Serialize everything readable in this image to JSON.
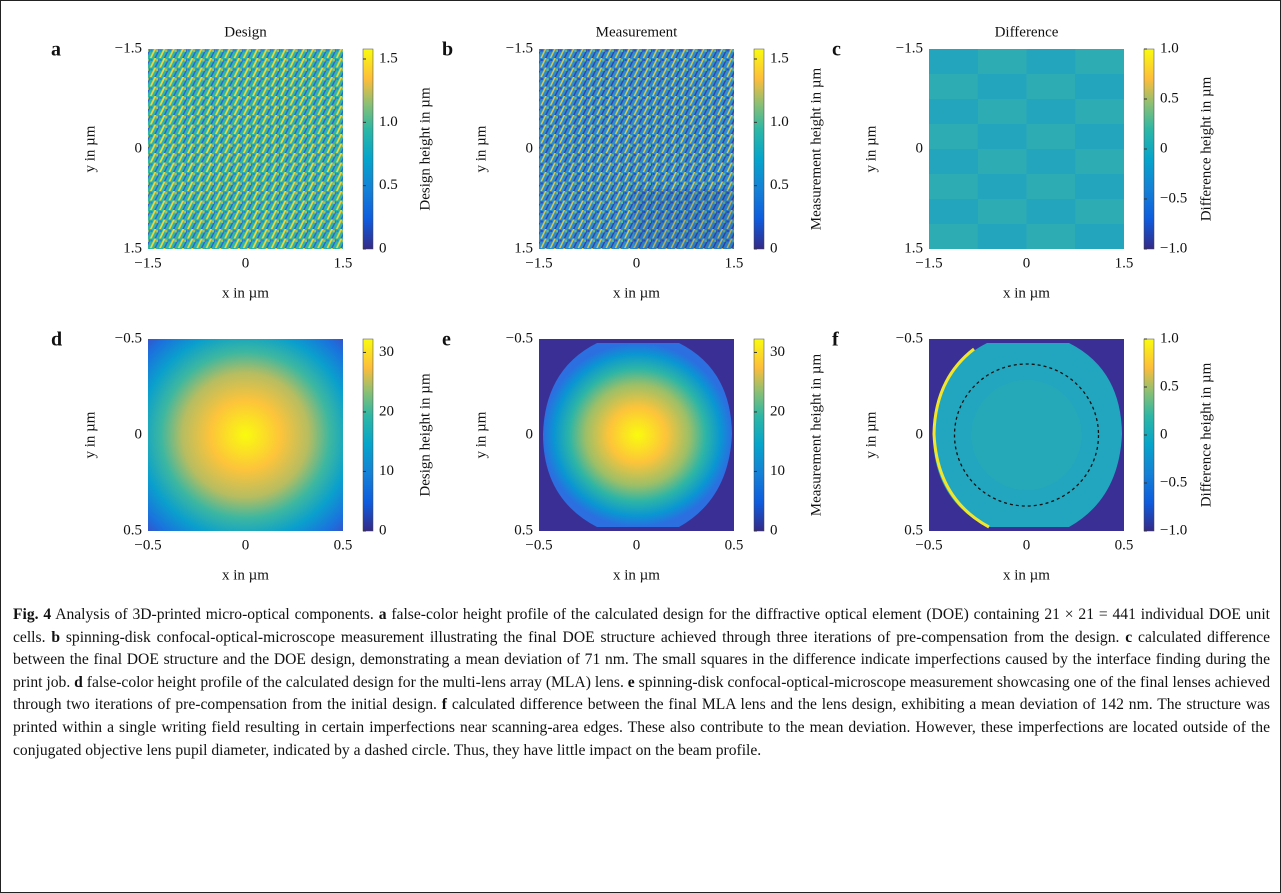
{
  "panels": [
    {
      "letter": "a",
      "title": "Design",
      "xlabel": "x in µm",
      "ylabel": "y in µm",
      "xticks": [
        "−1.5",
        "0",
        "1.5"
      ],
      "yticks": [
        "−1.5",
        "0",
        "1.5"
      ],
      "colorbar_label": "Design height in µm",
      "colorbar_ticks": [
        "0",
        "0.5",
        "1.0",
        "1.5"
      ]
    },
    {
      "letter": "b",
      "title": "Measurement",
      "xlabel": "x in µm",
      "ylabel": "y in µm",
      "xticks": [
        "−1.5",
        "0",
        "1.5"
      ],
      "yticks": [
        "−1.5",
        "0",
        "1.5"
      ],
      "colorbar_label": "Measurement height in µm",
      "colorbar_ticks": [
        "0",
        "0.5",
        "1.0",
        "1.5"
      ]
    },
    {
      "letter": "c",
      "title": "Difference",
      "xlabel": "x in µm",
      "ylabel": "y in µm",
      "xticks": [
        "−1.5",
        "0",
        "1.5"
      ],
      "yticks": [
        "−1.5",
        "0",
        "1.5"
      ],
      "colorbar_label": "Difference height in µm",
      "colorbar_ticks": [
        "−1.0",
        "−0.5",
        "0",
        "0.5",
        "1.0"
      ]
    },
    {
      "letter": "d",
      "xlabel": "x in µm",
      "ylabel": "y in µm",
      "xticks": [
        "−0.5",
        "0",
        "0.5"
      ],
      "yticks": [
        "−0.5",
        "0",
        "0.5"
      ],
      "colorbar_label": "Design height in µm",
      "colorbar_ticks": [
        "0",
        "10",
        "20",
        "30"
      ]
    },
    {
      "letter": "e",
      "xlabel": "x in µm",
      "ylabel": "y in µm",
      "xticks": [
        "−0.5",
        "0",
        "0.5"
      ],
      "yticks": [
        "−0.5",
        "0",
        "0.5"
      ],
      "colorbar_label": "Measurement height in µm",
      "colorbar_ticks": [
        "0",
        "10",
        "20",
        "30"
      ]
    },
    {
      "letter": "f",
      "xlabel": "x in µm",
      "ylabel": "y in µm",
      "xticks": [
        "−0.5",
        "0",
        "0.5"
      ],
      "yticks": [
        "−0.5",
        "0",
        "0.5"
      ],
      "colorbar_label": "Difference height in µm",
      "colorbar_ticks": [
        "−1.0",
        "−0.5",
        "0",
        "0.5",
        "1.0"
      ]
    }
  ],
  "caption": [
    {
      "text": "Fig. 4",
      "bold": true
    },
    {
      "text": " Analysis of 3D-printed micro-optical components. "
    },
    {
      "text": "a",
      "bold": true
    },
    {
      "text": " false-color height profile of the calculated design for the diffractive optical element (DOE) containing 21 × 21 = 441 individual DOE unit cells. "
    },
    {
      "text": "b",
      "bold": true
    },
    {
      "text": " spinning-disk confocal-optical-microscope measurement illustrating the final DOE structure achieved through three iterations of pre-compensation from the design. "
    },
    {
      "text": "c",
      "bold": true
    },
    {
      "text": " calculated difference between the final DOE structure and the DOE design, demonstrating a mean deviation of 71 nm. The small squares in the difference indicate imperfections caused by the interface finding during the print job. "
    },
    {
      "text": "d",
      "bold": true
    },
    {
      "text": " false-color height profile of the calculated design for the multi-lens array (MLA) lens. "
    },
    {
      "text": "e",
      "bold": true
    },
    {
      "text": " spinning-disk confocal-optical-microscope measurement showcasing one of the final lenses achieved through two iterations of pre-compensation from the initial design. "
    },
    {
      "text": "f",
      "bold": true
    },
    {
      "text": " calculated difference between the final MLA lens and the lens design, exhibiting a mean deviation of 142 nm. The structure was printed within a single writing field resulting in certain imperfections near scanning-area edges. These also contribute to the mean deviation. However, these imperfections are located outside of the conjugated objective lens pupil diameter, indicated by a dashed circle. Thus, they have little impact on the beam profile."
    }
  ]
}
